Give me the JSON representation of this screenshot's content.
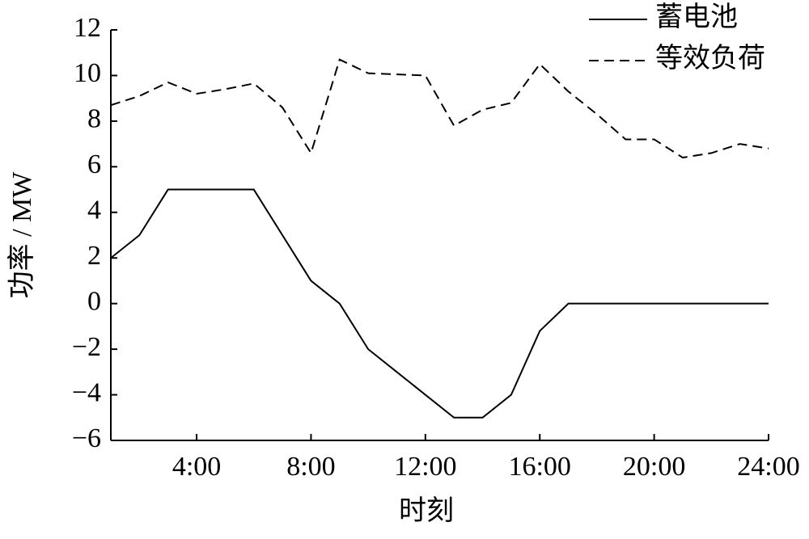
{
  "chart_data": {
    "type": "line",
    "x_label": "时刻",
    "y_label": "功率 / MW",
    "x": [
      1,
      2,
      3,
      4,
      5,
      6,
      7,
      8,
      9,
      10,
      11,
      12,
      13,
      14,
      15,
      16,
      17,
      18,
      19,
      20,
      21,
      22,
      23,
      24
    ],
    "series": [
      {
        "name": "蓄电池",
        "color": "#000000",
        "line_style": "solid",
        "values": [
          2,
          3,
          5,
          5,
          5,
          5,
          3,
          1,
          0,
          -2,
          -3,
          -4,
          -5,
          -5,
          -4,
          -1.2,
          0,
          0,
          0,
          0,
          0,
          0,
          0,
          0
        ]
      },
      {
        "name": "等效负荷",
        "color": "#000000",
        "line_style": "dashed",
        "values": [
          8.7,
          9.1,
          9.7,
          9.2,
          9.4,
          9.65,
          8.6,
          6.6,
          10.7,
          10.1,
          10.05,
          10.0,
          7.8,
          8.5,
          8.8,
          10.5,
          9.3,
          8.3,
          7.2,
          7.2,
          6.4,
          6.6,
          7.0,
          6.8
        ]
      }
    ],
    "xlim": [
      1,
      24
    ],
    "xticks": [
      {
        "value": 4,
        "label": "4:00"
      },
      {
        "value": 8,
        "label": "8:00"
      },
      {
        "value": 12,
        "label": "12:00"
      },
      {
        "value": 16,
        "label": "16:00"
      },
      {
        "value": 20,
        "label": "20:00"
      },
      {
        "value": 24,
        "label": "24:00"
      }
    ],
    "ylim": [
      -6,
      12
    ],
    "yticks": [
      {
        "value": -6,
        "label": "−6"
      },
      {
        "value": -4,
        "label": "−4"
      },
      {
        "value": -2,
        "label": "−2"
      },
      0,
      2,
      4,
      6,
      8,
      10,
      12
    ],
    "grid": false,
    "legend": "upper right"
  }
}
